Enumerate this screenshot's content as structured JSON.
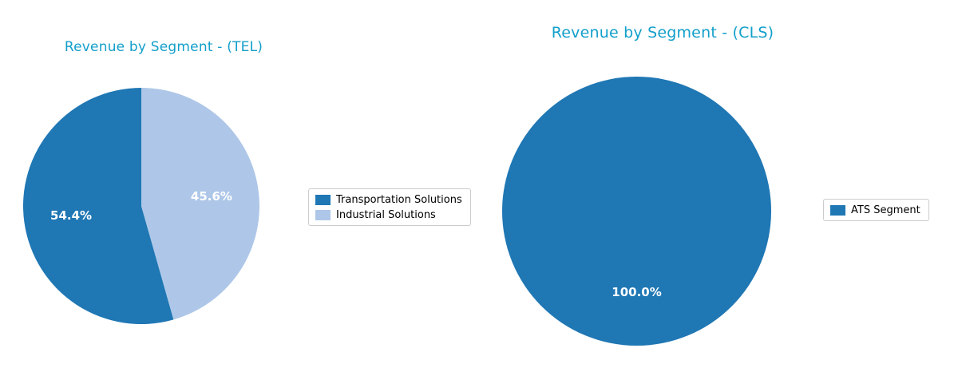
{
  "figure": {
    "background": "#ffffff"
  },
  "chart_data": [
    {
      "type": "pie",
      "title": "Revenue by Segment - (TEL)",
      "title_color": "#129fca",
      "categories": [
        "Transportation Solutions",
        "Industrial Solutions"
      ],
      "values": [
        54.4,
        45.6
      ],
      "value_unit": "percent",
      "pct_labels": [
        "54.4%",
        "45.6%"
      ],
      "colors": [
        "#1f77b4",
        "#aec7e8"
      ],
      "pct_label_color": "#ffffff",
      "start_angle": 90,
      "direction": "counterclockwise",
      "pct_distance": 0.6,
      "legend": {
        "position": "center right",
        "entries": [
          "Transportation Solutions",
          "Industrial Solutions"
        ]
      }
    },
    {
      "type": "pie",
      "title": "Revenue by Segment - (CLS)",
      "title_color": "#129fca",
      "categories": [
        "ATS Segment"
      ],
      "values": [
        100.0
      ],
      "value_unit": "percent",
      "pct_labels": [
        "100.0%"
      ],
      "colors": [
        "#1f77b4"
      ],
      "pct_label_color": "#ffffff",
      "start_angle": 90,
      "direction": "counterclockwise",
      "pct_distance": 0.6,
      "legend": {
        "position": "center right",
        "entries": [
          "ATS Segment"
        ]
      }
    }
  ]
}
